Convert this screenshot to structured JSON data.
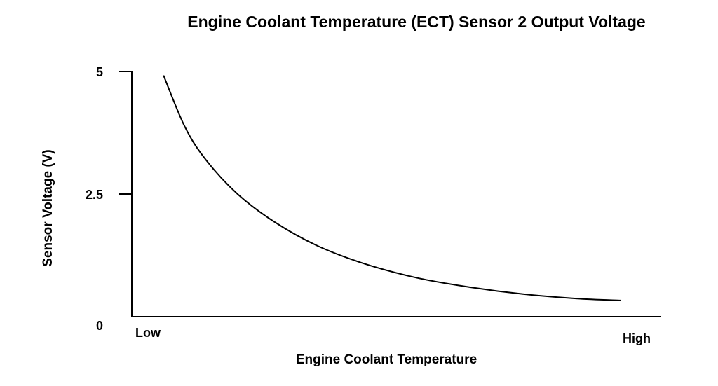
{
  "chart_data": {
    "type": "line",
    "title": "Engine Coolant Temperature (ECT) Sensor 2 Output Voltage",
    "xlabel": "Engine Coolant Temperature",
    "ylabel": "Sensor Voltage (V)",
    "ylim": [
      0,
      5
    ],
    "y_ticks": [
      {
        "value": 5,
        "label": "5"
      },
      {
        "value": 2.5,
        "label": "2.5"
      },
      {
        "value": 0,
        "label": "0"
      }
    ],
    "x_tick_labels": {
      "low": "Low",
      "high": "High"
    },
    "xlim": [
      0,
      1
    ],
    "grid": false,
    "series": [
      {
        "values": [
          {
            "x": 0.06,
            "y": 4.92
          },
          {
            "x": 0.1,
            "y": 3.88
          },
          {
            "x": 0.14,
            "y": 3.2
          },
          {
            "x": 0.2,
            "y": 2.5
          },
          {
            "x": 0.27,
            "y": 1.93
          },
          {
            "x": 0.35,
            "y": 1.45
          },
          {
            "x": 0.44,
            "y": 1.08
          },
          {
            "x": 0.54,
            "y": 0.79
          },
          {
            "x": 0.64,
            "y": 0.6
          },
          {
            "x": 0.74,
            "y": 0.46
          },
          {
            "x": 0.84,
            "y": 0.37
          },
          {
            "x": 0.925,
            "y": 0.33
          }
        ]
      }
    ],
    "colors": {
      "line": "#000000",
      "axis": "#000000"
    }
  }
}
